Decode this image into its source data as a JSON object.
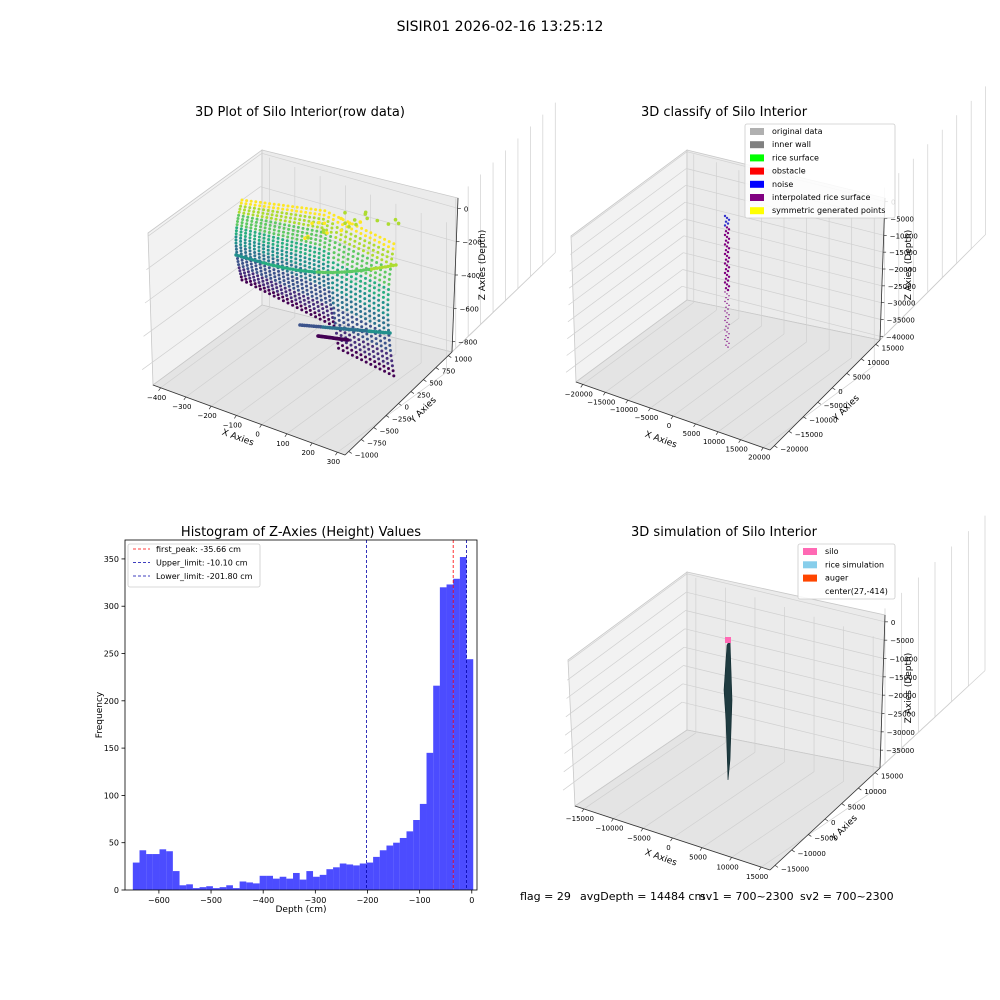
{
  "suptitle": "SISIR01 2026-02-16 13:25:12",
  "footer": {
    "flag": "flag = 29",
    "avg_depth": "avgDepth = 14484 cm",
    "sv1": "sv1 = 700~2300",
    "sv2": "sv2 = 700~2300"
  },
  "chart_data": [
    {
      "id": "raw3d",
      "type": "scatter",
      "title": "3D Plot of Silo Interior(row data)",
      "xlabel": "X Axies",
      "ylabel": "Y Axies",
      "zlabel": "Z Axies (Depth)",
      "x_ticks": [
        "−400",
        "−300",
        "−200",
        "−100",
        "0",
        "100",
        "200",
        "300"
      ],
      "y_ticks": [
        "−1000",
        "−750",
        "−500",
        "−250",
        "0",
        "250",
        "500",
        "750",
        "1000"
      ],
      "z_ticks": [
        "0",
        "−200",
        "−400",
        "−600",
        "−800"
      ],
      "colormap": "viridis"
    },
    {
      "id": "classify3d",
      "type": "scatter",
      "title": "3D classify of Silo Interior",
      "xlabel": "X Axies",
      "ylabel": "Y Axies",
      "zlabel": "Z Axies (Depth)",
      "x_ticks": [
        "−20000",
        "−15000",
        "−10000",
        "−5000",
        "0",
        "5000",
        "10000",
        "15000",
        "20000"
      ],
      "y_ticks": [
        "−20000",
        "−15000",
        "−10000",
        "−5000",
        "0",
        "5000",
        "10000",
        "15000"
      ],
      "z_ticks": [
        "0",
        "−5000",
        "−10000",
        "−15000",
        "−20000",
        "−25000",
        "−30000",
        "−35000",
        "−40000"
      ],
      "legend": [
        {
          "label": "original data",
          "color": "#b0b0b0"
        },
        {
          "label": "inner wall",
          "color": "#808080"
        },
        {
          "label": "rice surface",
          "color": "#00ff00"
        },
        {
          "label": "obstacle",
          "color": "#ff0000"
        },
        {
          "label": "noise",
          "color": "#0000ff"
        },
        {
          "label": "interpolated rice surface",
          "color": "#800080"
        },
        {
          "label": "symmetric generated points",
          "color": "#ffff00"
        }
      ],
      "legend_loc": "upper right"
    },
    {
      "id": "hist",
      "type": "bar",
      "title": "Histogram of Z-Axies (Height) Values",
      "xlabel": "Depth (cm)",
      "ylabel": "Frequency",
      "xlim": [
        -665,
        10
      ],
      "ylim": [
        0,
        370
      ],
      "x_ticks": [
        -600,
        -500,
        -400,
        -300,
        -200,
        -100,
        0
      ],
      "x_tick_labels": [
        "−600",
        "−500",
        "−400",
        "−300",
        "−200",
        "−100",
        "0"
      ],
      "y_ticks": [
        0,
        50,
        100,
        150,
        200,
        250,
        300,
        350
      ],
      "bar_color": "#0000ff",
      "bin_start": -650,
      "bin_width": 12.8,
      "values": [
        29,
        42,
        38,
        38,
        43,
        41,
        20,
        5,
        6,
        2,
        3,
        4,
        2,
        3,
        5,
        2,
        9,
        8,
        7,
        15,
        15,
        12,
        14,
        12,
        18,
        11,
        20,
        14,
        16,
        22,
        24,
        28,
        27,
        26,
        28,
        29,
        35,
        42,
        47,
        50,
        55,
        62,
        74,
        91,
        145,
        216,
        320,
        323,
        329,
        352,
        244
      ],
      "vlines": [
        {
          "x": -35.66,
          "color": "#ff0000",
          "label": "first_peak: -35.66 cm"
        },
        {
          "x": -10.1,
          "color": "#0000aa",
          "label": "Upper_limit: -10.10 cm"
        },
        {
          "x": -201.8,
          "color": "#0000aa",
          "label": "Lower_limit: -201.80 cm"
        }
      ],
      "legend_loc": "upper left"
    },
    {
      "id": "sim3d",
      "type": "area",
      "title": "3D simulation of Silo Interior",
      "xlabel": "X Axies",
      "ylabel": "Y Axies",
      "zlabel": "Z Axies (Depth)",
      "x_ticks": [
        "−15000",
        "−10000",
        "−5000",
        "0",
        "5000",
        "10000",
        "15000"
      ],
      "y_ticks": [
        "−15000",
        "−10000",
        "−5000",
        "0",
        "5000",
        "10000",
        "15000"
      ],
      "z_ticks": [
        "0",
        "−5000",
        "−10000",
        "−15000",
        "−20000",
        "−25000",
        "−30000",
        "−35000"
      ],
      "legend": [
        {
          "label": "silo",
          "color": "#ff69b4"
        },
        {
          "label": "rice simulation",
          "color": "#87ceeb"
        },
        {
          "label": "auger",
          "color": "#ff4500"
        },
        {
          "label": "center(27,-414)",
          "color": ""
        }
      ],
      "legend_loc": "upper right"
    }
  ]
}
